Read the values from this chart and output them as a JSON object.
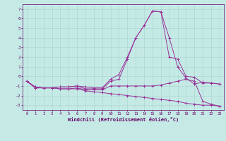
{
  "title": "",
  "xlabel": "Windchill (Refroidissement éolien,°C)",
  "ylabel": "",
  "xlim": [
    -0.5,
    23.5
  ],
  "ylim": [
    -3.5,
    7.5
  ],
  "yticks": [
    -3,
    -2,
    -1,
    0,
    1,
    2,
    3,
    4,
    5,
    6,
    7
  ],
  "xticks": [
    0,
    1,
    2,
    3,
    4,
    5,
    6,
    7,
    8,
    9,
    10,
    11,
    12,
    13,
    14,
    15,
    16,
    17,
    18,
    19,
    20,
    21,
    22,
    23
  ],
  "background_color": "#c5eae6",
  "grid_color": "#a8d4cf",
  "line_color": "#993399",
  "lines": [
    {
      "x": [
        0,
        1,
        2,
        3,
        4,
        5,
        6,
        7,
        8,
        9,
        10,
        11,
        12,
        13,
        14,
        15,
        16,
        17,
        18,
        19,
        20,
        21,
        22,
        23
      ],
      "y": [
        -0.5,
        -1.1,
        -1.2,
        -1.2,
        -1.1,
        -1.1,
        -1.0,
        -1.1,
        -1.2,
        -1.2,
        -0.3,
        0.2,
        2.0,
        4.0,
        5.3,
        6.8,
        6.7,
        2.0,
        1.8,
        0.0,
        -0.1,
        -0.7,
        -0.7,
        -0.8
      ]
    },
    {
      "x": [
        0,
        1,
        2,
        3,
        4,
        5,
        6,
        7,
        8,
        9,
        10,
        11,
        12,
        13,
        14,
        15,
        16,
        17,
        18,
        19,
        20,
        21,
        22,
        23
      ],
      "y": [
        -0.5,
        -1.1,
        -1.2,
        -1.2,
        -1.1,
        -1.1,
        -1.0,
        -1.3,
        -1.3,
        -1.3,
        -0.5,
        -0.3,
        1.8,
        4.0,
        5.3,
        6.8,
        6.7,
        4.0,
        1.0,
        -0.2,
        -0.8,
        -0.6,
        -0.7,
        -0.8
      ]
    },
    {
      "x": [
        0,
        1,
        2,
        3,
        4,
        5,
        6,
        7,
        8,
        9,
        10,
        11,
        12,
        13,
        14,
        15,
        16,
        17,
        18,
        19,
        20,
        21,
        22,
        23
      ],
      "y": [
        -0.5,
        -1.2,
        -1.2,
        -1.2,
        -1.3,
        -1.3,
        -1.2,
        -1.4,
        -1.4,
        -1.4,
        -1.0,
        -1.0,
        -1.0,
        -1.0,
        -1.0,
        -1.0,
        -0.9,
        -0.7,
        -0.5,
        -0.3,
        -0.5,
        -2.6,
        -2.9,
        -3.1
      ]
    },
    {
      "x": [
        0,
        1,
        2,
        3,
        4,
        5,
        6,
        7,
        8,
        9,
        10,
        11,
        12,
        13,
        14,
        15,
        16,
        17,
        18,
        19,
        20,
        21,
        22,
        23
      ],
      "y": [
        -0.5,
        -1.2,
        -1.2,
        -1.2,
        -1.3,
        -1.3,
        -1.3,
        -1.5,
        -1.6,
        -1.7,
        -1.8,
        -1.9,
        -2.0,
        -2.1,
        -2.2,
        -2.3,
        -2.4,
        -2.5,
        -2.6,
        -2.8,
        -2.9,
        -3.0,
        -3.0,
        -3.1
      ]
    }
  ]
}
